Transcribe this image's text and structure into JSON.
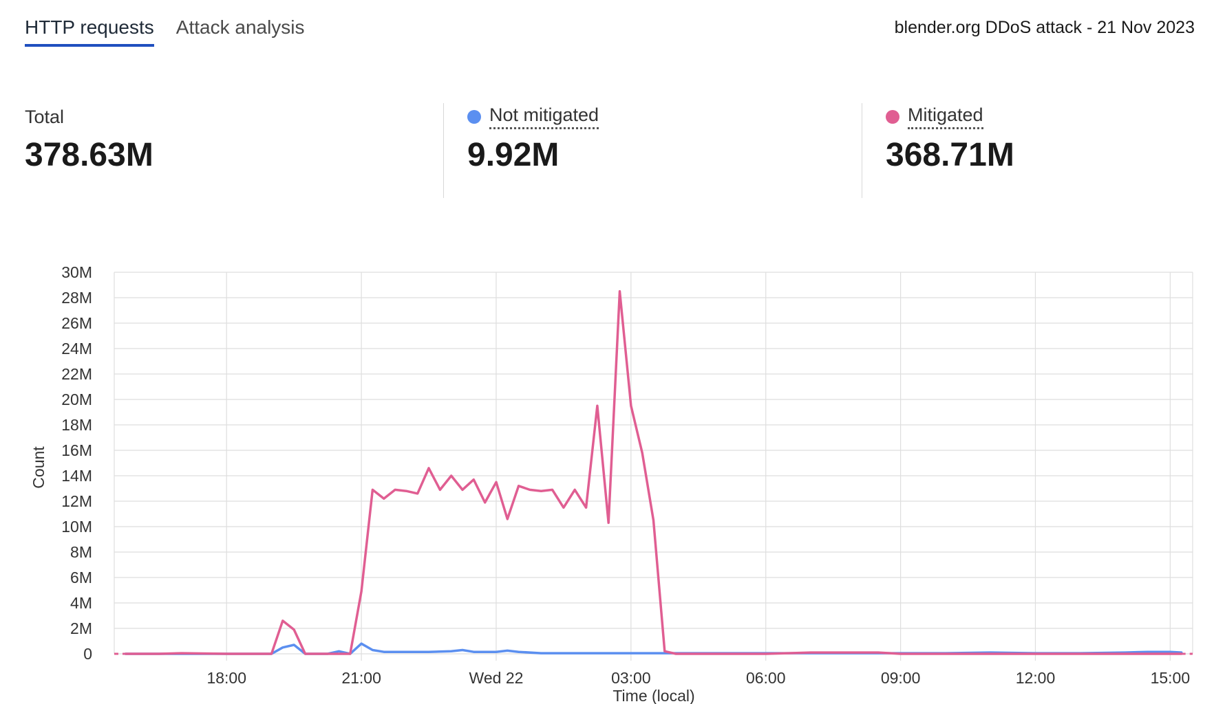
{
  "tabs": [
    {
      "label": "HTTP requests",
      "active": true
    },
    {
      "label": "Attack analysis",
      "active": false
    }
  ],
  "page_title": "blender.org DDoS attack - 21 Nov 2023",
  "stats": {
    "total": {
      "label": "Total",
      "value": "378.63M"
    },
    "not_mitigated": {
      "label": "Not mitigated",
      "value": "9.92M",
      "color": "#5b8ff0"
    },
    "mitigated": {
      "label": "Mitigated",
      "value": "368.71M",
      "color": "#e05e92"
    }
  },
  "chart_data": {
    "type": "line",
    "ylabel": "Count",
    "xlabel": "Time (local)",
    "ylim": [
      0,
      30
    ],
    "y_unit": "M",
    "y_ticks": [
      "0",
      "2M",
      "4M",
      "6M",
      "8M",
      "10M",
      "12M",
      "14M",
      "16M",
      "18M",
      "20M",
      "22M",
      "24M",
      "26M",
      "28M",
      "30M"
    ],
    "x_range_hours": [
      15.5,
      39.5
    ],
    "x_ticks": [
      {
        "at": 18,
        "label": "18:00"
      },
      {
        "at": 21,
        "label": "21:00"
      },
      {
        "at": 24,
        "label": "Wed 22"
      },
      {
        "at": 27,
        "label": "03:00"
      },
      {
        "at": 30,
        "label": "06:00"
      },
      {
        "at": 33,
        "label": "09:00"
      },
      {
        "at": 36,
        "label": "12:00"
      },
      {
        "at": 39,
        "label": "15:00"
      }
    ],
    "grid": true,
    "series": [
      {
        "name": "Mitigated",
        "color": "#e05e92",
        "points": [
          [
            15.75,
            0
          ],
          [
            16.5,
            0
          ],
          [
            17.0,
            0.05
          ],
          [
            18.0,
            0
          ],
          [
            18.5,
            0
          ],
          [
            19.0,
            0
          ],
          [
            19.25,
            2.6
          ],
          [
            19.5,
            1.9
          ],
          [
            19.75,
            0
          ],
          [
            20.0,
            0
          ],
          [
            20.5,
            0
          ],
          [
            20.75,
            0
          ],
          [
            21.0,
            4.9
          ],
          [
            21.25,
            12.9
          ],
          [
            21.5,
            12.2
          ],
          [
            21.75,
            12.9
          ],
          [
            22.0,
            12.8
          ],
          [
            22.25,
            12.6
          ],
          [
            22.5,
            14.6
          ],
          [
            22.75,
            12.9
          ],
          [
            23.0,
            14.0
          ],
          [
            23.25,
            12.9
          ],
          [
            23.5,
            13.7
          ],
          [
            23.75,
            11.9
          ],
          [
            24.0,
            13.5
          ],
          [
            24.25,
            10.6
          ],
          [
            24.5,
            13.2
          ],
          [
            24.75,
            12.9
          ],
          [
            25.0,
            12.8
          ],
          [
            25.25,
            12.9
          ],
          [
            25.5,
            11.5
          ],
          [
            25.75,
            12.9
          ],
          [
            26.0,
            11.5
          ],
          [
            26.25,
            19.5
          ],
          [
            26.5,
            10.3
          ],
          [
            26.75,
            28.5
          ],
          [
            27.0,
            19.5
          ],
          [
            27.25,
            15.8
          ],
          [
            27.5,
            10.5
          ],
          [
            27.75,
            0.2
          ],
          [
            28.0,
            0
          ],
          [
            29.0,
            0
          ],
          [
            30.0,
            0
          ],
          [
            30.5,
            0.05
          ],
          [
            31.0,
            0.1
          ],
          [
            32.0,
            0.1
          ],
          [
            32.5,
            0.1
          ],
          [
            33.0,
            0
          ],
          [
            34.0,
            0
          ],
          [
            35.0,
            0
          ],
          [
            36.0,
            0
          ],
          [
            37.0,
            0
          ],
          [
            38.0,
            0
          ],
          [
            39.0,
            0
          ],
          [
            39.25,
            0
          ]
        ]
      },
      {
        "name": "Not mitigated",
        "color": "#5b8ff0",
        "points": [
          [
            15.75,
            0
          ],
          [
            16.5,
            0
          ],
          [
            17.0,
            0
          ],
          [
            18.0,
            0
          ],
          [
            19.0,
            0
          ],
          [
            19.25,
            0.5
          ],
          [
            19.5,
            0.7
          ],
          [
            19.75,
            0
          ],
          [
            20.0,
            0
          ],
          [
            20.25,
            0
          ],
          [
            20.5,
            0.2
          ],
          [
            20.75,
            0
          ],
          [
            21.0,
            0.8
          ],
          [
            21.25,
            0.3
          ],
          [
            21.5,
            0.15
          ],
          [
            21.75,
            0.15
          ],
          [
            22.0,
            0.15
          ],
          [
            22.5,
            0.15
          ],
          [
            23.0,
            0.2
          ],
          [
            23.25,
            0.3
          ],
          [
            23.5,
            0.15
          ],
          [
            24.0,
            0.15
          ],
          [
            24.25,
            0.25
          ],
          [
            24.5,
            0.15
          ],
          [
            25.0,
            0.05
          ],
          [
            26.0,
            0.05
          ],
          [
            27.0,
            0.05
          ],
          [
            28.0,
            0.05
          ],
          [
            29.0,
            0.05
          ],
          [
            30.0,
            0.05
          ],
          [
            31.0,
            0.05
          ],
          [
            32.0,
            0.05
          ],
          [
            33.0,
            0.05
          ],
          [
            34.0,
            0.05
          ],
          [
            35.0,
            0.1
          ],
          [
            36.0,
            0.05
          ],
          [
            37.0,
            0.05
          ],
          [
            38.0,
            0.1
          ],
          [
            38.5,
            0.15
          ],
          [
            39.0,
            0.15
          ],
          [
            39.25,
            0.1
          ]
        ]
      }
    ]
  }
}
